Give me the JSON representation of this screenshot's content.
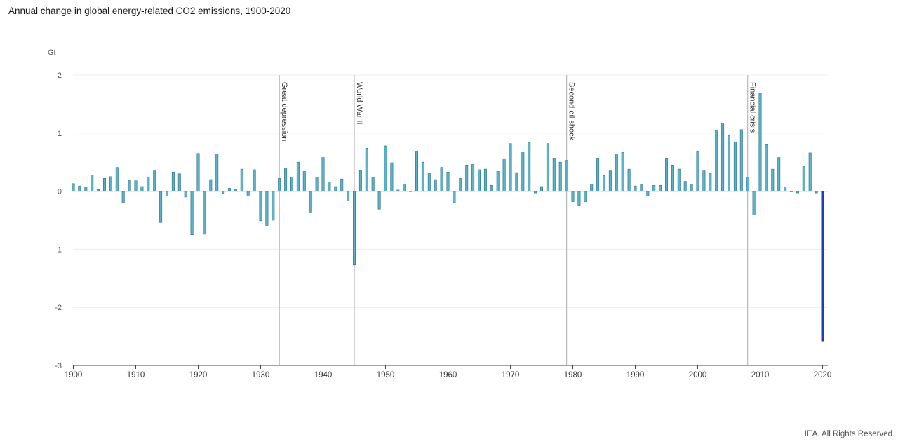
{
  "header": {
    "title": "Annual change in global energy-related CO2 emissions, 1900-2020"
  },
  "footer": {
    "credit": "IEA. All Rights Reserved"
  },
  "chart_data": {
    "type": "bar",
    "title": "Annual change in global energy-related CO2 emissions, 1900-2020",
    "ylabel": "Gt",
    "xlabel": "",
    "ylim": [
      -3,
      2
    ],
    "yticks": [
      2,
      1,
      0,
      -1,
      -2,
      -3
    ],
    "xticks": [
      1900,
      1910,
      1920,
      1930,
      1940,
      1950,
      1960,
      1970,
      1980,
      1990,
      2000,
      2010,
      2020
    ],
    "grid": true,
    "x": [
      1900,
      1901,
      1902,
      1903,
      1904,
      1905,
      1906,
      1907,
      1908,
      1909,
      1910,
      1911,
      1912,
      1913,
      1914,
      1915,
      1916,
      1917,
      1918,
      1919,
      1920,
      1921,
      1922,
      1923,
      1924,
      1925,
      1926,
      1927,
      1928,
      1929,
      1930,
      1931,
      1932,
      1933,
      1934,
      1935,
      1936,
      1937,
      1938,
      1939,
      1940,
      1941,
      1942,
      1943,
      1944,
      1945,
      1946,
      1947,
      1948,
      1949,
      1950,
      1951,
      1952,
      1953,
      1954,
      1955,
      1956,
      1957,
      1958,
      1959,
      1960,
      1961,
      1962,
      1963,
      1964,
      1965,
      1966,
      1967,
      1968,
      1969,
      1970,
      1971,
      1972,
      1973,
      1974,
      1975,
      1976,
      1977,
      1978,
      1979,
      1980,
      1981,
      1982,
      1983,
      1984,
      1985,
      1986,
      1987,
      1988,
      1989,
      1990,
      1991,
      1992,
      1993,
      1994,
      1995,
      1996,
      1997,
      1998,
      1999,
      2000,
      2001,
      2002,
      2003,
      2004,
      2005,
      2006,
      2007,
      2008,
      2009,
      2010,
      2011,
      2012,
      2013,
      2014,
      2015,
      2016,
      2017,
      2018,
      2019,
      2020
    ],
    "values": [
      0.13,
      0.09,
      0.07,
      0.28,
      0.03,
      0.22,
      0.25,
      0.41,
      -0.2,
      0.19,
      0.18,
      0.08,
      0.24,
      0.35,
      -0.54,
      -0.08,
      0.33,
      0.3,
      -0.1,
      -0.75,
      0.65,
      -0.74,
      0.2,
      0.64,
      -0.04,
      0.05,
      0.04,
      0.38,
      -0.07,
      0.37,
      -0.51,
      -0.59,
      -0.5,
      0.22,
      0.4,
      0.24,
      0.5,
      0.34,
      -0.36,
      0.24,
      0.58,
      0.16,
      0.08,
      0.21,
      -0.17,
      -1.27,
      0.36,
      0.74,
      0.24,
      -0.31,
      0.78,
      0.49,
      0.02,
      0.12,
      0.0,
      0.69,
      0.5,
      0.31,
      0.2,
      0.41,
      0.33,
      -0.2,
      0.22,
      0.45,
      0.46,
      0.37,
      0.38,
      0.1,
      0.34,
      0.56,
      0.82,
      0.32,
      0.68,
      0.84,
      -0.03,
      0.08,
      0.82,
      0.57,
      0.5,
      0.53,
      -0.18,
      -0.24,
      -0.18,
      0.12,
      0.57,
      0.27,
      0.35,
      0.64,
      0.67,
      0.38,
      0.09,
      0.11,
      -0.08,
      0.1,
      0.1,
      0.57,
      0.45,
      0.38,
      0.17,
      0.12,
      0.69,
      0.35,
      0.31,
      1.05,
      1.17,
      0.96,
      0.85,
      1.06,
      0.24,
      -0.41,
      1.68,
      0.8,
      0.38,
      0.58,
      0.07,
      -0.01,
      -0.03,
      0.43,
      0.66,
      -0.03,
      -2.58
    ],
    "highlight": {
      "year": 2020,
      "color": "#1c3fb8"
    },
    "annotations": [
      {
        "year": 1933,
        "label": "Great depression"
      },
      {
        "year": 1945,
        "label": "World War II"
      },
      {
        "year": 1979,
        "label": "Second oil shock"
      },
      {
        "year": 2008,
        "label": "Financial crisis"
      }
    ],
    "colors": {
      "bar_fill": "#59b4c9",
      "bar_stroke": "#2a6f82",
      "highlight": "#1c3fb8",
      "annotation_line": "#b8b8b8",
      "grid": "#ececec",
      "axis": "#444444"
    }
  }
}
